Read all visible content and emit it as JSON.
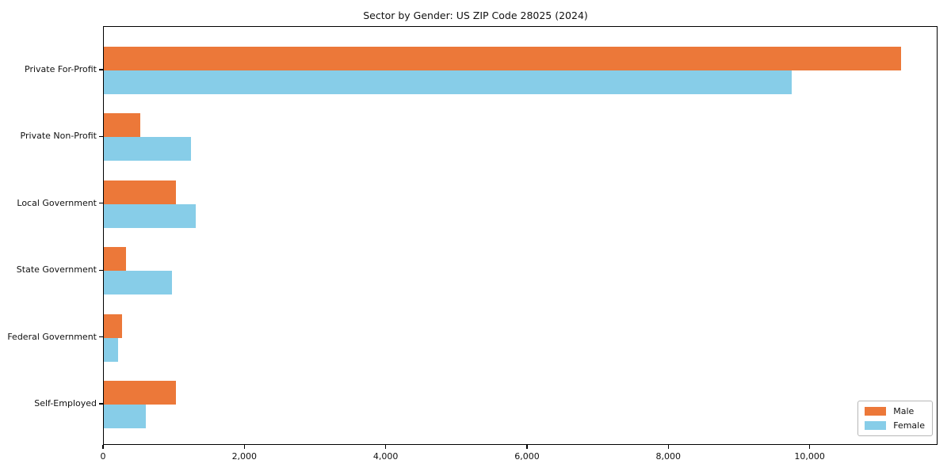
{
  "chart_data": {
    "type": "bar",
    "orientation": "horizontal",
    "title": "Sector by Gender: US ZIP Code 28025 (2024)",
    "xlabel": "",
    "ylabel": "",
    "categories": [
      "Private For-Profit",
      "Private Non-Profit",
      "Local Government",
      "State Government",
      "Federal Government",
      "Self-Employed"
    ],
    "series": [
      {
        "name": "Male",
        "color": "#ec7839",
        "values": [
          11280,
          520,
          1020,
          310,
          260,
          1020
        ]
      },
      {
        "name": "Female",
        "color": "#87cde8",
        "values": [
          9740,
          1230,
          1300,
          970,
          200,
          590
        ]
      }
    ],
    "xlim": [
      0,
      11810
    ],
    "x_ticks": [
      0,
      2000,
      4000,
      6000,
      8000,
      10000
    ],
    "x_tick_labels": [
      "0",
      "2,000",
      "4,000",
      "6,000",
      "8,000",
      "10,000"
    ],
    "grid": false,
    "legend_position": "lower right",
    "legend_labels": [
      "Male",
      "Female"
    ]
  }
}
